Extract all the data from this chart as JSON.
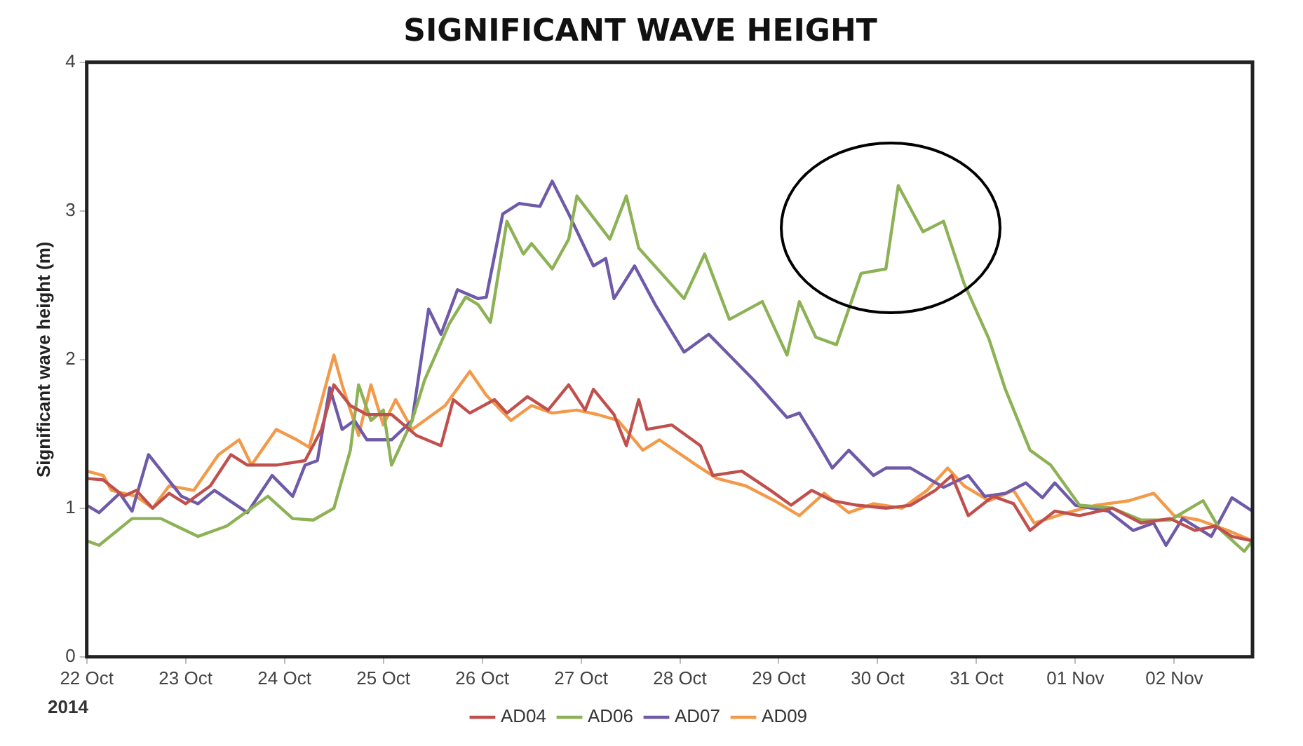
{
  "chart_data": {
    "type": "line",
    "title": "SIGNIFICANT WAVE HEIGHT",
    "ylabel": "Significant wave height (m)",
    "annotations": [
      "2014"
    ],
    "xlim": [
      "2014-10-22",
      "2014-11-02T19:00"
    ],
    "xticks": [
      {
        "value": "2014-10-22",
        "label": "22 Oct"
      },
      {
        "value": "2014-10-23",
        "label": "23 Oct"
      },
      {
        "value": "2014-10-24",
        "label": "24 Oct"
      },
      {
        "value": "2014-10-25",
        "label": "25 Oct"
      },
      {
        "value": "2014-10-26",
        "label": "26 Oct"
      },
      {
        "value": "2014-10-27",
        "label": "27 Oct"
      },
      {
        "value": "2014-10-28",
        "label": "28 Oct"
      },
      {
        "value": "2014-10-29",
        "label": "29 Oct"
      },
      {
        "value": "2014-10-30",
        "label": "30 Oct"
      },
      {
        "value": "2014-10-31",
        "label": "31 Oct"
      },
      {
        "value": "2014-11-01",
        "label": "01 Nov"
      },
      {
        "value": "2014-11-02",
        "label": "02 Nov"
      }
    ],
    "ylim": [
      0,
      4
    ],
    "yticks": [
      0,
      1,
      2,
      3,
      4
    ],
    "grid": false,
    "legend": "bottom",
    "marker": "none",
    "line_style": "solid",
    "series": [
      {
        "name": "AD04",
        "color": "#c0504d",
        "x": [
          "2014-10-22T00:00",
          "2014-10-22T04:00",
          "2014-10-22T09:00",
          "2014-10-22T12:00",
          "2014-10-22T16:00",
          "2014-10-22T20:00",
          "2014-10-23T00:00",
          "2014-10-23T06:00",
          "2014-10-23T11:00",
          "2014-10-23T15:00",
          "2014-10-23T22:00",
          "2014-10-24T05:00",
          "2014-10-24T09:00",
          "2014-10-24T12:00",
          "2014-10-24T16:00",
          "2014-10-24T20:00",
          "2014-10-25T02:00",
          "2014-10-25T08:00",
          "2014-10-25T14:00",
          "2014-10-25T17:00",
          "2014-10-25T21:00",
          "2014-10-26T03:00",
          "2014-10-26T06:00",
          "2014-10-26T11:00",
          "2014-10-26T16:00",
          "2014-10-26T21:00",
          "2014-10-27T01:00",
          "2014-10-27T03:00",
          "2014-10-27T08:00",
          "2014-10-27T11:00",
          "2014-10-27T14:00",
          "2014-10-27T16:00",
          "2014-10-27T22:00",
          "2014-10-28T05:00",
          "2014-10-28T08:00",
          "2014-10-28T15:00",
          "2014-10-28T22:00",
          "2014-10-29T03:00",
          "2014-10-29T08:00",
          "2014-10-29T13:00",
          "2014-10-29T19:00",
          "2014-10-30T02:00",
          "2014-10-30T08:00",
          "2014-10-30T14:00",
          "2014-10-30T18:00",
          "2014-10-30T22:00",
          "2014-10-31T04:00",
          "2014-10-31T09:00",
          "2014-10-31T13:00",
          "2014-10-31T19:00",
          "2014-11-01T01:00",
          "2014-11-01T09:00",
          "2014-11-01T16:00",
          "2014-11-01T23:00",
          "2014-11-02T05:00",
          "2014-11-02T10:00",
          "2014-11-02T14:00",
          "2014-11-02T19:00"
        ],
        "values": [
          1.2,
          1.19,
          1.08,
          1.12,
          1.0,
          1.1,
          1.03,
          1.15,
          1.36,
          1.29,
          1.29,
          1.32,
          1.53,
          1.83,
          1.69,
          1.63,
          1.63,
          1.49,
          1.42,
          1.73,
          1.64,
          1.73,
          1.64,
          1.75,
          1.66,
          1.83,
          1.66,
          1.8,
          1.63,
          1.42,
          1.73,
          1.53,
          1.56,
          1.42,
          1.22,
          1.25,
          1.12,
          1.02,
          1.12,
          1.05,
          1.02,
          1.0,
          1.02,
          1.12,
          1.22,
          0.95,
          1.08,
          1.03,
          0.85,
          0.98,
          0.95,
          1.0,
          0.9,
          0.93,
          0.85,
          0.88,
          0.81,
          0.78
        ]
      },
      {
        "name": "AD06",
        "color": "#8db255",
        "x": [
          "2014-10-22T00:00",
          "2014-10-22T03:00",
          "2014-10-22T11:00",
          "2014-10-22T18:00",
          "2014-10-23T03:00",
          "2014-10-23T10:00",
          "2014-10-23T20:00",
          "2014-10-24T02:00",
          "2014-10-24T07:00",
          "2014-10-24T12:00",
          "2014-10-24T16:00",
          "2014-10-24T18:00",
          "2014-10-24T21:00",
          "2014-10-25T00:00",
          "2014-10-25T02:00",
          "2014-10-25T07:00",
          "2014-10-25T10:00",
          "2014-10-25T16:00",
          "2014-10-25T20:00",
          "2014-10-25T23:00",
          "2014-10-26T02:00",
          "2014-10-26T06:00",
          "2014-10-26T10:00",
          "2014-10-26T12:00",
          "2014-10-26T17:00",
          "2014-10-26T21:00",
          "2014-10-26T23:00",
          "2014-10-27T07:00",
          "2014-10-27T11:00",
          "2014-10-27T14:00",
          "2014-10-28T01:00",
          "2014-10-28T06:00",
          "2014-10-28T12:00",
          "2014-10-28T20:00",
          "2014-10-29T02:00",
          "2014-10-29T05:00",
          "2014-10-29T09:00",
          "2014-10-29T14:00",
          "2014-10-29T20:00",
          "2014-10-30T02:00",
          "2014-10-30T05:00",
          "2014-10-30T11:00",
          "2014-10-30T16:00",
          "2014-10-30T21:00",
          "2014-10-31T03:00",
          "2014-10-31T07:00",
          "2014-10-31T13:00",
          "2014-10-31T18:00",
          "2014-11-01T01:00",
          "2014-11-01T09:00",
          "2014-11-01T16:00",
          "2014-11-01T23:00",
          "2014-11-02T07:00",
          "2014-11-02T11:00",
          "2014-11-02T17:00",
          "2014-11-02T19:00"
        ],
        "values": [
          0.78,
          0.75,
          0.93,
          0.93,
          0.81,
          0.88,
          1.08,
          0.93,
          0.92,
          1.0,
          1.39,
          1.83,
          1.59,
          1.66,
          1.29,
          1.59,
          1.86,
          2.24,
          2.42,
          2.37,
          2.25,
          2.93,
          2.71,
          2.78,
          2.61,
          2.81,
          3.1,
          2.81,
          3.1,
          2.75,
          2.41,
          2.71,
          2.27,
          2.39,
          2.03,
          2.39,
          2.15,
          2.1,
          2.58,
          2.61,
          3.17,
          2.86,
          2.93,
          2.51,
          2.14,
          1.8,
          1.39,
          1.29,
          1.02,
          1.0,
          0.92,
          0.92,
          1.05,
          0.86,
          0.71,
          0.78
        ]
      },
      {
        "name": "AD07",
        "color": "#6e5aa8",
        "x": [
          "2014-10-22T00:00",
          "2014-10-22T03:00",
          "2014-10-22T08:00",
          "2014-10-22T11:00",
          "2014-10-22T15:00",
          "2014-10-22T23:00",
          "2014-10-23T03:00",
          "2014-10-23T07:00",
          "2014-10-23T15:00",
          "2014-10-23T21:00",
          "2014-10-24T02:00",
          "2014-10-24T05:00",
          "2014-10-24T08:00",
          "2014-10-24T11:00",
          "2014-10-24T14:00",
          "2014-10-24T17:00",
          "2014-10-24T20:00",
          "2014-10-25T02:00",
          "2014-10-25T07:00",
          "2014-10-25T11:00",
          "2014-10-25T14:00",
          "2014-10-25T18:00",
          "2014-10-25T23:00",
          "2014-10-26T01:00",
          "2014-10-26T05:00",
          "2014-10-26T09:00",
          "2014-10-26T14:00",
          "2014-10-26T17:00",
          "2014-10-26T21:00",
          "2014-10-27T03:00",
          "2014-10-27T06:00",
          "2014-10-27T08:00",
          "2014-10-27T13:00",
          "2014-10-27T18:00",
          "2014-10-28T01:00",
          "2014-10-28T07:00",
          "2014-10-28T18:00",
          "2014-10-29T02:00",
          "2014-10-29T05:00",
          "2014-10-29T09:00",
          "2014-10-29T13:00",
          "2014-10-29T17:00",
          "2014-10-29T23:00",
          "2014-10-30T02:00",
          "2014-10-30T08:00",
          "2014-10-30T16:00",
          "2014-10-30T22:00",
          "2014-10-31T02:00",
          "2014-10-31T07:00",
          "2014-10-31T12:00",
          "2014-10-31T16:00",
          "2014-10-31T19:00",
          "2014-11-01T00:00",
          "2014-11-01T08:00",
          "2014-11-01T14:00",
          "2014-11-01T19:00",
          "2014-11-01T22:00",
          "2014-11-02T02:00",
          "2014-11-02T09:00",
          "2014-11-02T14:00",
          "2014-11-02T19:00"
        ],
        "values": [
          1.02,
          0.97,
          1.1,
          0.98,
          1.36,
          1.08,
          1.03,
          1.12,
          0.97,
          1.22,
          1.08,
          1.29,
          1.32,
          1.81,
          1.53,
          1.59,
          1.46,
          1.46,
          1.59,
          2.34,
          2.17,
          2.47,
          2.41,
          2.42,
          2.98,
          3.05,
          3.03,
          3.2,
          2.98,
          2.63,
          2.68,
          2.41,
          2.63,
          2.37,
          2.05,
          2.17,
          1.86,
          1.61,
          1.64,
          1.46,
          1.27,
          1.39,
          1.22,
          1.27,
          1.27,
          1.14,
          1.22,
          1.08,
          1.1,
          1.17,
          1.07,
          1.17,
          1.02,
          0.98,
          0.85,
          0.9,
          0.75,
          0.93,
          0.81,
          1.07,
          0.98
        ]
      },
      {
        "name": "AD09",
        "color": "#f39a4a",
        "x": [
          "2014-10-22T00:00",
          "2014-10-22T04:00",
          "2014-10-22T06:00",
          "2014-10-22T12:00",
          "2014-10-22T16:00",
          "2014-10-22T20:00",
          "2014-10-23T02:00",
          "2014-10-23T08:00",
          "2014-10-23T13:00",
          "2014-10-23T16:00",
          "2014-10-23T22:00",
          "2014-10-24T03:00",
          "2014-10-24T06:00",
          "2014-10-24T12:00",
          "2014-10-24T14:00",
          "2014-10-24T18:00",
          "2014-10-24T21:00",
          "2014-10-25T00:00",
          "2014-10-25T03:00",
          "2014-10-25T07:00",
          "2014-10-25T12:00",
          "2014-10-25T15:00",
          "2014-10-25T21:00",
          "2014-10-26T01:00",
          "2014-10-26T07:00",
          "2014-10-26T12:00",
          "2014-10-26T17:00",
          "2014-10-26T23:00",
          "2014-10-27T04:00",
          "2014-10-27T09:00",
          "2014-10-27T15:00",
          "2014-10-27T19:00",
          "2014-10-28T04:00",
          "2014-10-28T09:00",
          "2014-10-28T16:00",
          "2014-10-28T23:00",
          "2014-10-29T05:00",
          "2014-10-29T11:00",
          "2014-10-29T17:00",
          "2014-10-29T23:00",
          "2014-10-30T06:00",
          "2014-10-30T12:00",
          "2014-10-30T17:00",
          "2014-10-30T21:00",
          "2014-10-31T03:00",
          "2014-10-31T09:00",
          "2014-10-31T14:00",
          "2014-10-31T22:00",
          "2014-11-01T05:00",
          "2014-11-01T13:00",
          "2014-11-01T19:00",
          "2014-11-02T00:00",
          "2014-11-02T06:00",
          "2014-11-02T13:00",
          "2014-11-02T19:00"
        ],
        "values": [
          1.25,
          1.22,
          1.12,
          1.08,
          1.0,
          1.15,
          1.12,
          1.36,
          1.46,
          1.29,
          1.53,
          1.46,
          1.41,
          2.03,
          1.83,
          1.49,
          1.83,
          1.56,
          1.73,
          1.53,
          1.63,
          1.69,
          1.92,
          1.76,
          1.59,
          1.69,
          1.64,
          1.66,
          1.63,
          1.59,
          1.39,
          1.46,
          1.29,
          1.2,
          1.15,
          1.05,
          0.95,
          1.1,
          0.97,
          1.03,
          1.0,
          1.12,
          1.27,
          1.15,
          1.05,
          1.12,
          0.9,
          0.97,
          1.02,
          1.05,
          1.1,
          0.95,
          0.92,
          0.85,
          0.78
        ]
      }
    ]
  }
}
